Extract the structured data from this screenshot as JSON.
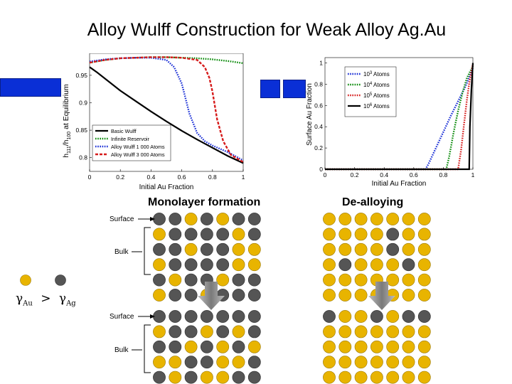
{
  "title": "Alloy Wulff Construction for Weak Alloy Ag.Au",
  "chart_data": [
    {
      "type": "line",
      "xlabel": "Initial Au Fraction",
      "ylabel": "h111/h100 at Equilibrium",
      "ylabel_main": "h",
      "ylabel_sub1": "111",
      "ylabel_mid": "/h",
      "ylabel_sub2": "100",
      "ylabel_tail": " at Equilibrium",
      "xlim": [
        0,
        1
      ],
      "ylim": [
        0.775,
        0.99
      ],
      "xticks": [
        "0",
        "0.2",
        "0.4",
        "0.6",
        "0.8",
        "1"
      ],
      "yticks": [
        "0.8",
        "0.85",
        "0.9",
        "0.95"
      ],
      "ytick_values": [
        0.8,
        0.85,
        0.9,
        0.95
      ],
      "legend_position": "bottom-left",
      "series": [
        {
          "name": "Basic Wulff",
          "color": "#000000",
          "style": "solid",
          "x": [
            0,
            0.05,
            0.1,
            0.2,
            0.3,
            0.4,
            0.5,
            0.6,
            0.7,
            0.8,
            0.9,
            1.0
          ],
          "y": [
            0.965,
            0.955,
            0.944,
            0.922,
            0.903,
            0.884,
            0.866,
            0.849,
            0.833,
            0.818,
            0.803,
            0.79
          ]
        },
        {
          "name": "Infinite Reservoir",
          "color": "#0a8a0a",
          "style": "dotted",
          "x": [
            0,
            0.1,
            0.2,
            0.3,
            0.4,
            0.5,
            0.6,
            0.7,
            0.8,
            0.9,
            1.0
          ],
          "y": [
            0.973,
            0.978,
            0.981,
            0.982,
            0.983,
            0.983,
            0.982,
            0.981,
            0.979,
            0.976,
            0.972
          ]
        },
        {
          "name": "Alloy Wulff 1 000 Atoms",
          "color": "#1a2fd6",
          "style": "dotted",
          "x": [
            0,
            0.1,
            0.2,
            0.3,
            0.4,
            0.5,
            0.55,
            0.6,
            0.65,
            0.7,
            0.75,
            0.8,
            0.9,
            1.0
          ],
          "y": [
            0.975,
            0.979,
            0.981,
            0.982,
            0.982,
            0.978,
            0.965,
            0.935,
            0.88,
            0.845,
            0.83,
            0.822,
            0.81,
            0.795
          ]
        },
        {
          "name": "Alloy Wulff 3 000 Atoms",
          "color": "#d61a1a",
          "style": "dashed",
          "x": [
            0,
            0.1,
            0.2,
            0.3,
            0.4,
            0.5,
            0.6,
            0.7,
            0.75,
            0.78,
            0.8,
            0.83,
            0.87,
            0.92,
            1.0
          ],
          "y": [
            0.973,
            0.978,
            0.981,
            0.982,
            0.983,
            0.983,
            0.982,
            0.978,
            0.965,
            0.945,
            0.92,
            0.87,
            0.83,
            0.805,
            0.792
          ]
        }
      ]
    },
    {
      "type": "line",
      "xlabel": "Initial Au Fraction",
      "ylabel": "Surface Au Fraction",
      "xlim": [
        0,
        1
      ],
      "ylim": [
        0,
        1.05
      ],
      "xticks": [
        "0",
        "0.2",
        "0.4",
        "0.6",
        "0.8",
        "1"
      ],
      "yticks": [
        "0",
        "0.2",
        "0.4",
        "0.6",
        "0.8",
        "1"
      ],
      "ytick_values": [
        0,
        0.2,
        0.4,
        0.6,
        0.8,
        1
      ],
      "legend_position": "top-right",
      "series": [
        {
          "name": "10^3 Atoms",
          "name_base": "10",
          "name_exp": "3",
          "name_tail": " Atoms",
          "color": "#1a2fd6",
          "style": "dotted",
          "x": [
            0,
            0.68,
            0.7,
            0.75,
            0.8,
            0.85,
            0.9,
            0.95,
            1.0
          ],
          "y": [
            0,
            0,
            0.05,
            0.2,
            0.35,
            0.5,
            0.64,
            0.78,
            0.95
          ]
        },
        {
          "name": "10^4 Atoms",
          "name_base": "10",
          "name_exp": "4",
          "name_tail": " Atoms",
          "color": "#0a8a0a",
          "style": "dotted",
          "x": [
            0,
            0.82,
            0.84,
            0.87,
            0.9,
            0.93,
            0.96,
            1.0
          ],
          "y": [
            0,
            0,
            0.12,
            0.35,
            0.55,
            0.72,
            0.86,
            0.97
          ]
        },
        {
          "name": "10^5 Atoms",
          "name_base": "10",
          "name_exp": "5",
          "name_tail": " Atoms",
          "color": "#d61a1a",
          "style": "dotted",
          "x": [
            0,
            0.9,
            0.92,
            0.94,
            0.96,
            0.98,
            1.0
          ],
          "y": [
            0,
            0,
            0.18,
            0.42,
            0.66,
            0.85,
            0.99
          ]
        },
        {
          "name": "10^6 Atoms",
          "name_base": "10",
          "name_exp": "6",
          "name_tail": " Atoms",
          "color": "#000000",
          "style": "solid",
          "x": [
            0,
            0.975,
            0.98,
            0.99,
            1.0
          ],
          "y": [
            0,
            0,
            0.4,
            0.75,
            1.0
          ]
        }
      ]
    }
  ],
  "diagram": {
    "monolayer_label": "Monolayer formation",
    "dealloy_label": "De-alloying",
    "surface_label": "Surface",
    "bulk_label": "Bulk",
    "gamma_au": "Au",
    "gamma_ag": "Ag",
    "gamma_symbol": "γ",
    "gamma_relation": ">",
    "au_color": "#e8b400",
    "ag_color": "#555555",
    "grids": [
      {
        "rows": [
          "ggygygg",
          "yggggyg",
          "ggyggyy",
          "yggggyy",
          "gyggyggg",
          "yggyggg"
        ]
      },
      {
        "rows": [
          "yyyyyyy",
          "yyyygyy",
          "yyyygyy",
          "ygyyygy",
          "yyyyyyy",
          "yyyyyyy"
        ]
      },
      {
        "rows": [
          "ggggggg",
          "yggygyg",
          "ggygygy",
          "yyggyyg",
          "gygyyggy",
          "ggyggyg"
        ]
      },
      {
        "rows": [
          "gyygygg",
          "yyyyyyy",
          "yyyyyyy",
          "yyyyyyy",
          "yyyyyyy",
          "yyyyyyy"
        ]
      }
    ]
  }
}
